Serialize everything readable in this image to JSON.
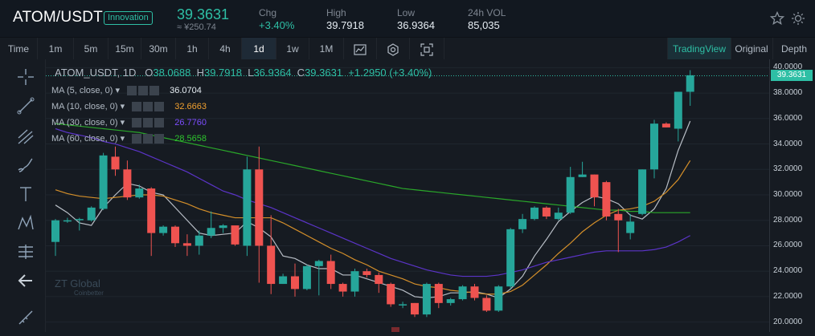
{
  "header": {
    "pair": "ATOM/USDT",
    "tag": "Innovation",
    "price": "39.3631",
    "fiat": "≈ ¥250.74",
    "stats": [
      {
        "label": "Chg",
        "value": "+3.40%",
        "up": true
      },
      {
        "label": "High",
        "value": "39.7918",
        "up": false
      },
      {
        "label": "Low",
        "value": "36.9364",
        "up": false
      },
      {
        "label": "24h VOL",
        "value": "85,035",
        "up": false
      }
    ]
  },
  "toolbar": {
    "time_label": "Time",
    "intervals": [
      "1m",
      "5m",
      "15m",
      "30m",
      "1h",
      "4h",
      "1d",
      "1w",
      "1M"
    ],
    "active_interval": "1d",
    "views": [
      "TradingView",
      "Original",
      "Depth"
    ],
    "active_view": "TradingView"
  },
  "legend": {
    "symbol": "ATOM_USDT, 1D",
    "open_label": "O",
    "open": "38.0688",
    "high_label": "H",
    "high": "39.7918",
    "low_label": "L",
    "low": "36.9364",
    "close_label": "C",
    "close": "39.3631",
    "change": "+1.2950 (+3.40%)"
  },
  "ma": [
    {
      "label": "MA (5, close, 0)",
      "value": "36.0704",
      "color": "#e6edf3"
    },
    {
      "label": "MA (10, close, 0)",
      "value": "32.6663",
      "color": "#f0a030"
    },
    {
      "label": "MA (30, close, 0)",
      "value": "26.7760",
      "color": "#6a3fd6"
    },
    {
      "label": "MA (60, close, 0)",
      "value": "28.5658",
      "color": "#2ec42e"
    }
  ],
  "watermark": {
    "brand": "ZT Global",
    "sub": "Coinbetter"
  },
  "chart_data": {
    "type": "candlestick",
    "yaxis_ticks": [
      "40.0000",
      "38.0000",
      "36.0000",
      "34.0000",
      "32.0000",
      "30.0000",
      "28.0000",
      "26.0000",
      "24.0000",
      "22.0000",
      "20.0000"
    ],
    "last_price_label": "39.3631",
    "ylim": [
      19.6,
      40.4
    ],
    "colors": {
      "up": "#26a69a",
      "down": "#ef5350"
    },
    "candles": [
      [
        26.3,
        28.0,
        25.2,
        28.1
      ],
      [
        28.0,
        28.0,
        27.8,
        28.2
      ],
      [
        28.1,
        28.1,
        27.2,
        28.2
      ],
      [
        28.0,
        29.0,
        27.9,
        29.1
      ],
      [
        28.9,
        33.1,
        28.8,
        33.3
      ],
      [
        33.0,
        32.0,
        31.5,
        33.8
      ],
      [
        32.0,
        29.8,
        29.6,
        32.7
      ],
      [
        29.8,
        30.5,
        29.7,
        30.8
      ],
      [
        30.5,
        27.0,
        25.2,
        30.6
      ],
      [
        27.0,
        27.5,
        26.8,
        27.6
      ],
      [
        27.5,
        26.2,
        25.9,
        27.6
      ],
      [
        26.2,
        26.0,
        25.2,
        26.9
      ],
      [
        26.0,
        26.8,
        25.3,
        27.2
      ],
      [
        26.8,
        27.4,
        26.6,
        28.7
      ],
      [
        27.4,
        27.6,
        27.0,
        27.7
      ],
      [
        27.6,
        26.1,
        26.0,
        27.5
      ],
      [
        26.0,
        32.0,
        25.2,
        33.0
      ],
      [
        32.0,
        26.0,
        23.1,
        33.8
      ],
      [
        26.0,
        23.0,
        22.2,
        28.4
      ],
      [
        23.0,
        23.6,
        23.0,
        23.8
      ],
      [
        23.6,
        22.6,
        22.0,
        24.6
      ],
      [
        22.6,
        24.4,
        22.5,
        24.5
      ],
      [
        24.4,
        24.8,
        22.1,
        24.9
      ],
      [
        24.8,
        23.0,
        22.6,
        25.3
      ],
      [
        23.0,
        22.4,
        22.0,
        23.1
      ],
      [
        22.4,
        24.0,
        22.0,
        24.2
      ],
      [
        24.0,
        23.7,
        23.5,
        24.2
      ],
      [
        23.7,
        23.0,
        22.3,
        23.9
      ],
      [
        23.0,
        21.4,
        21.2,
        23.1
      ],
      [
        21.4,
        21.4,
        21.1,
        21.6
      ],
      [
        21.5,
        20.6,
        20.4,
        21.5
      ],
      [
        20.6,
        23.0,
        20.4,
        23.1
      ],
      [
        23.0,
        21.5,
        21.1,
        23.1
      ],
      [
        21.5,
        21.8,
        21.3,
        21.9
      ],
      [
        21.8,
        22.8,
        21.7,
        22.9
      ],
      [
        22.8,
        21.9,
        21.7,
        23.0
      ],
      [
        21.9,
        20.9,
        20.8,
        22.1
      ],
      [
        20.9,
        22.8,
        20.8,
        22.9
      ],
      [
        22.8,
        27.3,
        22.6,
        27.4
      ],
      [
        27.3,
        28.1,
        27.0,
        28.5
      ],
      [
        28.1,
        29.0,
        28.0,
        29.1
      ],
      [
        29.0,
        28.3,
        28.1,
        29.1
      ],
      [
        28.1,
        28.6,
        28.0,
        29.0
      ],
      [
        28.6,
        31.4,
        28.5,
        32.2
      ],
      [
        31.4,
        31.6,
        31.4,
        32.6
      ],
      [
        31.6,
        29.8,
        29.1,
        31.6
      ],
      [
        31.0,
        28.3,
        28.0,
        31.1
      ],
      [
        28.5,
        28.0,
        25.5,
        28.9
      ],
      [
        27.0,
        27.9,
        26.5,
        28.5
      ],
      [
        28.5,
        32.0,
        28.4,
        32.0
      ],
      [
        32.0,
        35.6,
        31.3,
        35.9
      ],
      [
        35.6,
        35.3,
        35.3,
        35.7
      ],
      [
        35.2,
        38.1,
        34.2,
        38.1
      ],
      [
        38.1,
        39.4,
        37.0,
        39.8
      ]
    ],
    "ma_series": {
      "ma5": [
        29.2,
        28.6,
        27.8,
        27.6,
        29.0,
        30.0,
        30.9,
        30.7,
        30.2,
        30.0,
        29.0,
        28.0,
        27.0,
        26.8,
        26.9,
        27.0,
        27.9,
        27.4,
        26.7,
        25.2,
        25.0,
        24.5,
        24.2,
        24.2,
        23.7,
        23.7,
        23.4,
        23.1,
        22.8,
        22.5,
        22.0,
        21.9,
        22.0,
        22.3,
        22.3,
        22.4,
        22.2,
        21.9,
        22.6,
        23.6,
        25.2,
        26.5,
        27.9,
        28.7,
        29.4,
        29.9,
        29.7,
        29.3,
        28.4,
        28.1,
        28.9,
        30.5,
        33.5,
        35.8
      ],
      "ma10": [
        30.4,
        30.1,
        29.9,
        29.8,
        29.7,
        29.8,
        29.9,
        30.0,
        30.0,
        29.9,
        29.6,
        29.3,
        28.9,
        28.6,
        28.4,
        28.2,
        28.2,
        28.2,
        28.2,
        27.8,
        27.3,
        26.8,
        26.3,
        25.8,
        25.4,
        24.9,
        24.5,
        24.0,
        23.7,
        23.4,
        23.0,
        22.8,
        22.7,
        22.5,
        22.4,
        22.3,
        22.2,
        22.2,
        22.4,
        22.9,
        23.7,
        24.5,
        25.4,
        26.2,
        27.1,
        27.8,
        28.4,
        28.8,
        28.9,
        29.1,
        29.5,
        30.2,
        31.2,
        32.7
      ],
      "ma30": [
        35.2,
        34.9,
        34.7,
        34.5,
        34.2,
        34.0,
        33.7,
        33.4,
        33.0,
        32.6,
        32.2,
        31.8,
        31.3,
        30.8,
        30.3,
        30.0,
        29.6,
        29.3,
        29.0,
        28.6,
        28.2,
        27.8,
        27.4,
        27.0,
        26.6,
        26.2,
        25.8,
        25.4,
        25.0,
        24.7,
        24.4,
        24.1,
        23.9,
        23.7,
        23.6,
        23.6,
        23.6,
        23.7,
        23.9,
        24.1,
        24.4,
        24.7,
        24.9,
        25.1,
        25.3,
        25.5,
        25.6,
        25.6,
        25.6,
        25.6,
        25.7,
        25.9,
        26.3,
        26.8
      ],
      "ma60": [
        35.6,
        35.5,
        35.4,
        35.3,
        35.2,
        35.1,
        35.0,
        34.9,
        34.7,
        34.5,
        34.3,
        34.1,
        33.9,
        33.7,
        33.5,
        33.3,
        33.1,
        32.9,
        32.7,
        32.5,
        32.3,
        32.1,
        31.9,
        31.7,
        31.5,
        31.3,
        31.1,
        30.9,
        30.7,
        30.5,
        30.4,
        30.3,
        30.2,
        30.1,
        30.0,
        29.9,
        29.8,
        29.7,
        29.6,
        29.5,
        29.4,
        29.3,
        29.2,
        29.1,
        29.0,
        28.9,
        28.8,
        28.8,
        28.7,
        28.7,
        28.6,
        28.6,
        28.6,
        28.6
      ]
    }
  }
}
